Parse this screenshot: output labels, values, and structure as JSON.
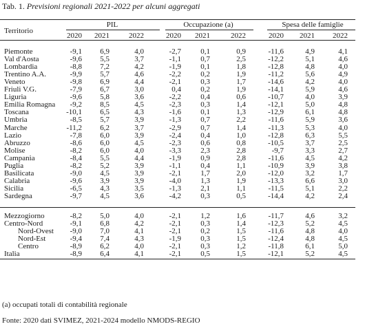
{
  "caption": {
    "prefix": "Tab. 1. ",
    "title": "Previsioni regionali 2021-2022 per alcuni aggregati"
  },
  "header": {
    "territorio": "Territorio",
    "groups": [
      "PIL",
      "Occupazione (a)",
      "Spesa delle famiglie"
    ],
    "years": [
      "2020",
      "2021",
      "2022"
    ]
  },
  "rows": [
    {
      "name": "Piemonte",
      "indent": 0,
      "v": [
        "-9,1",
        "6,9",
        "4,0",
        "-2,7",
        "0,1",
        "0,9",
        "-11,6",
        "4,9",
        "4,1"
      ]
    },
    {
      "name": "Val d'Aosta",
      "indent": 0,
      "v": [
        "-9,6",
        "5,5",
        "3,7",
        "-1,1",
        "0,7",
        "2,5",
        "-12,2",
        "5,1",
        "4,6"
      ]
    },
    {
      "name": "Lombardia",
      "indent": 0,
      "v": [
        "-8,8",
        "7,2",
        "4,2",
        "-1,9",
        "0,1",
        "1,8",
        "-12,8",
        "4,8",
        "4,0"
      ]
    },
    {
      "name": "Trentino A.A.",
      "indent": 0,
      "v": [
        "-9,9",
        "5,7",
        "4,6",
        "-2,2",
        "0,2",
        "1,9",
        "-11,2",
        "5,6",
        "4,9"
      ]
    },
    {
      "name": "Veneto",
      "indent": 0,
      "v": [
        "-9,8",
        "6,9",
        "4,4",
        "-2,1",
        "0,3",
        "1,7",
        "-14,6",
        "4,2",
        "4,0"
      ]
    },
    {
      "name": "Friuli V.G.",
      "indent": 0,
      "v": [
        "-7,9",
        "6,7",
        "3,0",
        "0,4",
        "0,2",
        "1,9",
        "-14,1",
        "5,9",
        "4,6"
      ]
    },
    {
      "name": "Liguria",
      "indent": 0,
      "v": [
        "-9,6",
        "5,8",
        "3,6",
        "-2,2",
        "0,4",
        "0,6",
        "-10,7",
        "4,0",
        "3,9"
      ]
    },
    {
      "name": "Emilia Romagna",
      "indent": 0,
      "v": [
        "-9,2",
        "8,5",
        "4,5",
        "-2,3",
        "0,3",
        "1,4",
        "-12,1",
        "5,0",
        "4,8"
      ]
    },
    {
      "name": "Toscana",
      "indent": 0,
      "v": [
        "-10,1",
        "6,5",
        "4,3",
        "-1,6",
        "0,1",
        "1,3",
        "-12,9",
        "6,1",
        "4,8"
      ]
    },
    {
      "name": "Umbria",
      "indent": 0,
      "v": [
        "-8,5",
        "5,7",
        "3,9",
        "-1,3",
        "0,7",
        "2,2",
        "-11,6",
        "5,9",
        "3,6"
      ]
    },
    {
      "name": "Marche",
      "indent": 0,
      "v": [
        "-11,2",
        "6,2",
        "3,7",
        "-2,9",
        "0,7",
        "1,4",
        "-11,3",
        "5,3",
        "4,0"
      ]
    },
    {
      "name": "Lazio",
      "indent": 0,
      "v": [
        "-7,8",
        "6,0",
        "3,9",
        "-2,4",
        "0,4",
        "1,0",
        "-12,8",
        "6,3",
        "5,5"
      ]
    },
    {
      "name": "Abruzzo",
      "indent": 0,
      "v": [
        "-8,6",
        "6,0",
        "4,5",
        "-2,3",
        "0,6",
        "0,8",
        "-10,5",
        "3,7",
        "2,5"
      ]
    },
    {
      "name": "Molise",
      "indent": 0,
      "v": [
        "-8,2",
        "6,0",
        "4,0",
        "-3,3",
        "2,3",
        "2,8",
        "-9,7",
        "3,3",
        "2,7"
      ]
    },
    {
      "name": "Campania",
      "indent": 0,
      "v": [
        "-8,4",
        "5,5",
        "4,4",
        "-1,9",
        "0,9",
        "2,8",
        "-11,6",
        "4,5",
        "4,2"
      ]
    },
    {
      "name": "Puglia",
      "indent": 0,
      "v": [
        "-8,2",
        "5,2",
        "3,9",
        "-1,1",
        "0,4",
        "1,1",
        "-10,9",
        "3,9",
        "3,8"
      ]
    },
    {
      "name": "Basilicata",
      "indent": 0,
      "v": [
        "-9,0",
        "4,5",
        "3,9",
        "-2,1",
        "1,7",
        "2,0",
        "-12,0",
        "3,2",
        "1,7"
      ]
    },
    {
      "name": "Calabria",
      "indent": 0,
      "v": [
        "-9,6",
        "3,9",
        "3,9",
        "-4,0",
        "1,3",
        "1,9",
        "-13,3",
        "6,6",
        "3,0"
      ]
    },
    {
      "name": "Sicilia",
      "indent": 0,
      "v": [
        "-6,5",
        "4,3",
        "3,5",
        "-1,3",
        "2,1",
        "1,1",
        "-11,5",
        "5,1",
        "2,2"
      ]
    },
    {
      "name": "Sardegna",
      "indent": 0,
      "v": [
        "-9,7",
        "4,5",
        "3,6",
        "-4,2",
        "0,3",
        "0,5",
        "-14,4",
        "4,2",
        "2,4"
      ]
    },
    {
      "name": "Mezzogiorno",
      "indent": 0,
      "v": [
        "-8,2",
        "5,0",
        "4,0",
        "-2,1",
        "1,2",
        "1,6",
        "-11,7",
        "4,6",
        "3,2"
      ]
    },
    {
      "name": "Centro-Nord",
      "indent": 0,
      "v": [
        "-9,1",
        "6,8",
        "4,2",
        "-2,1",
        "0,3",
        "1,4",
        "-12,3",
        "5,2",
        "4,5"
      ]
    },
    {
      "name": "Nord-Ovest",
      "indent": 1,
      "v": [
        "-9,0",
        "7,0",
        "4,1",
        "-2,1",
        "0,2",
        "1,5",
        "-11,6",
        "4,8",
        "4,0"
      ]
    },
    {
      "name": "Nord-Est",
      "indent": 1,
      "v": [
        "-9,4",
        "7,4",
        "4,3",
        "-1,9",
        "0,3",
        "1,5",
        "-12,4",
        "4,8",
        "4,5"
      ]
    },
    {
      "name": "Centro",
      "indent": 1,
      "v": [
        "-8,9",
        "6,2",
        "4,0",
        "-2,1",
        "0,3",
        "1,2",
        "-11,8",
        "6,1",
        "5,0"
      ]
    },
    {
      "name": "Italia",
      "indent": 0,
      "v": [
        "-8,9",
        "6,4",
        "4,1",
        "-2,1",
        "0,5",
        "1,5",
        "-12,1",
        "5,2",
        "4,5"
      ]
    }
  ],
  "footnote": "(a) occupati totali di contabilità regionale",
  "source": "Fonte: 2020 dati SVIMEZ, 2021-2024 modello NMODS-REGIO"
}
